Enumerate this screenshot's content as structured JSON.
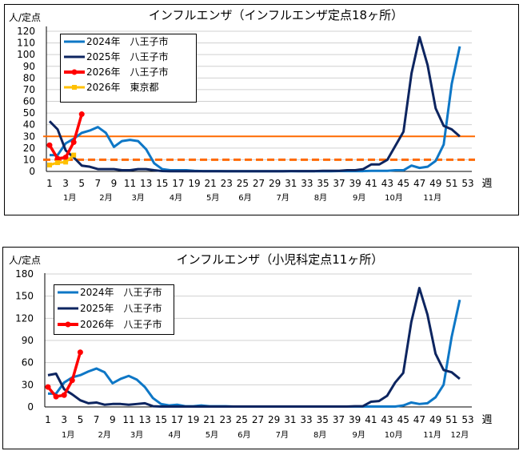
{
  "chart_data": [
    {
      "type": "line",
      "title": "インフルエンザ（インフルエンザ定点18ヶ所）",
      "ylabel": "人/定点",
      "xlabel": "週",
      "ylim": [
        0,
        120
      ],
      "yticks": [
        0,
        10,
        20,
        30,
        40,
        50,
        60,
        70,
        80,
        90,
        100,
        110,
        120
      ],
      "xticks": [
        1,
        3,
        5,
        7,
        9,
        11,
        13,
        15,
        17,
        19,
        21,
        23,
        25,
        27,
        29,
        31,
        33,
        35,
        37,
        39,
        41,
        43,
        45,
        47,
        49,
        51,
        53
      ],
      "months": [
        {
          "label": "1月",
          "week": 3.5
        },
        {
          "label": "2月",
          "week": 8
        },
        {
          "label": "3月",
          "week": 12
        },
        {
          "label": "4月",
          "week": 16.7
        },
        {
          "label": "5月",
          "week": 21.3
        },
        {
          "label": "6月",
          "week": 25.3
        },
        {
          "label": "7月",
          "week": 30
        },
        {
          "label": "8月",
          "week": 34.7
        },
        {
          "label": "9月",
          "week": 39.5
        },
        {
          "label": "10月",
          "week": 43.8
        },
        {
          "label": "11月",
          "week": 48.6
        }
      ],
      "grid": true,
      "legend": "top-left",
      "reference_lines": [
        {
          "value": 30,
          "style": "solid",
          "color": "#ff6a00"
        },
        {
          "value": 10,
          "style": "dashed",
          "color": "#ff6a00"
        }
      ],
      "series": [
        {
          "name": "2024年　八王子市",
          "color": "#0e77c6",
          "marker": "none",
          "values": [
            14,
            14,
            24,
            28,
            33,
            35,
            38,
            33,
            21,
            26,
            27,
            26,
            19,
            7,
            2,
            1,
            1,
            1,
            0.5,
            0.3,
            0.3,
            0.3,
            0.2,
            0.2,
            0.2,
            0.2,
            0.2,
            0.2,
            0.2,
            0.2,
            0.2,
            0.2,
            0.2,
            0.2,
            0.2,
            0.2,
            0.3,
            0.3,
            0.3,
            0.3,
            0.5,
            0.5,
            0.5,
            1,
            1,
            5,
            3,
            4,
            9,
            23,
            75,
            107
          ]
        },
        {
          "name": "2025年　八王子市",
          "color": "#0d2560",
          "marker": "none",
          "values": [
            43,
            36,
            18,
            12,
            5,
            4,
            2,
            2,
            2,
            1,
            1,
            2,
            2,
            1,
            0.3,
            0.2,
            0.2,
            0.2,
            0.2,
            0.2,
            0.2,
            0.2,
            0.2,
            0.2,
            0.2,
            0.2,
            0.2,
            0.2,
            0.2,
            0.2,
            0.3,
            0.3,
            0.3,
            0.3,
            0.5,
            0.5,
            0.5,
            1,
            1,
            2,
            6,
            6,
            10,
            22,
            34,
            84,
            115,
            91,
            54,
            39,
            36,
            30
          ]
        },
        {
          "name": "2026年　八王子市",
          "color": "#ff0000",
          "marker": "circle",
          "values": [
            22.5,
            11,
            12,
            25,
            49
          ]
        },
        {
          "name": "2026年　東京都",
          "color": "#ffc000",
          "marker": "square",
          "values": [
            5.5,
            7.5,
            8,
            14
          ]
        }
      ]
    },
    {
      "type": "line",
      "title": "インフルエンザ（小児科定点11ヶ所）",
      "ylabel": "人/定点",
      "xlabel": "週",
      "ylim": [
        0,
        180
      ],
      "yticks": [
        0,
        30,
        60,
        90,
        120,
        150,
        180
      ],
      "xticks": [
        1,
        3,
        5,
        7,
        9,
        11,
        13,
        15,
        17,
        19,
        21,
        23,
        25,
        27,
        29,
        31,
        33,
        35,
        37,
        39,
        41,
        43,
        45,
        47,
        49,
        51,
        53
      ],
      "months": [
        {
          "label": "1月",
          "week": 3.5
        },
        {
          "label": "2月",
          "week": 8
        },
        {
          "label": "3月",
          "week": 12
        },
        {
          "label": "4月",
          "week": 16.7
        },
        {
          "label": "5月",
          "week": 21.3
        },
        {
          "label": "6月",
          "week": 25.3
        },
        {
          "label": "7月",
          "week": 30
        },
        {
          "label": "8月",
          "week": 34.7
        },
        {
          "label": "9月",
          "week": 39.5
        },
        {
          "label": "10月",
          "week": 43.8
        },
        {
          "label": "11月",
          "week": 48.6
        },
        {
          "label": "12月",
          "week": 52
        }
      ],
      "grid": true,
      "legend": "top-left",
      "series": [
        {
          "name": "2024年　八王子市",
          "color": "#0e77c6",
          "marker": "none",
          "values": [
            18,
            18,
            33,
            40,
            43,
            48,
            52,
            47,
            32,
            38,
            42,
            37,
            27,
            12,
            4,
            2,
            3,
            1,
            1,
            2,
            1,
            1,
            1,
            0.5,
            0.5,
            0.5,
            0.5,
            0.5,
            0.5,
            0.5,
            0.5,
            0.5,
            0.5,
            0.5,
            0.5,
            0.5,
            0.5,
            0.5,
            0.5,
            0.5,
            0.5,
            0.5,
            0.5,
            0.5,
            2,
            6,
            4,
            5,
            13,
            30,
            95,
            145
          ]
        },
        {
          "name": "2025年　八王子市",
          "color": "#0d2560",
          "marker": "none",
          "values": [
            43,
            45,
            24,
            17,
            9,
            5,
            6,
            3,
            4,
            4,
            3,
            4,
            5,
            1,
            0.5,
            0.5,
            0.5,
            0.5,
            0.5,
            0.5,
            0.5,
            0.5,
            0.5,
            0.5,
            0.5,
            0.5,
            0.5,
            0.5,
            0.5,
            0.5,
            0.5,
            0.5,
            0.5,
            0.5,
            0.5,
            0.5,
            0.5,
            0.5,
            1,
            1,
            7,
            8,
            15,
            33,
            46,
            115,
            161,
            125,
            72,
            50,
            47,
            38
          ]
        },
        {
          "name": "2026年　八王子市",
          "color": "#ff0000",
          "marker": "circle",
          "values": [
            27,
            14,
            16,
            36,
            74
          ]
        }
      ]
    }
  ]
}
